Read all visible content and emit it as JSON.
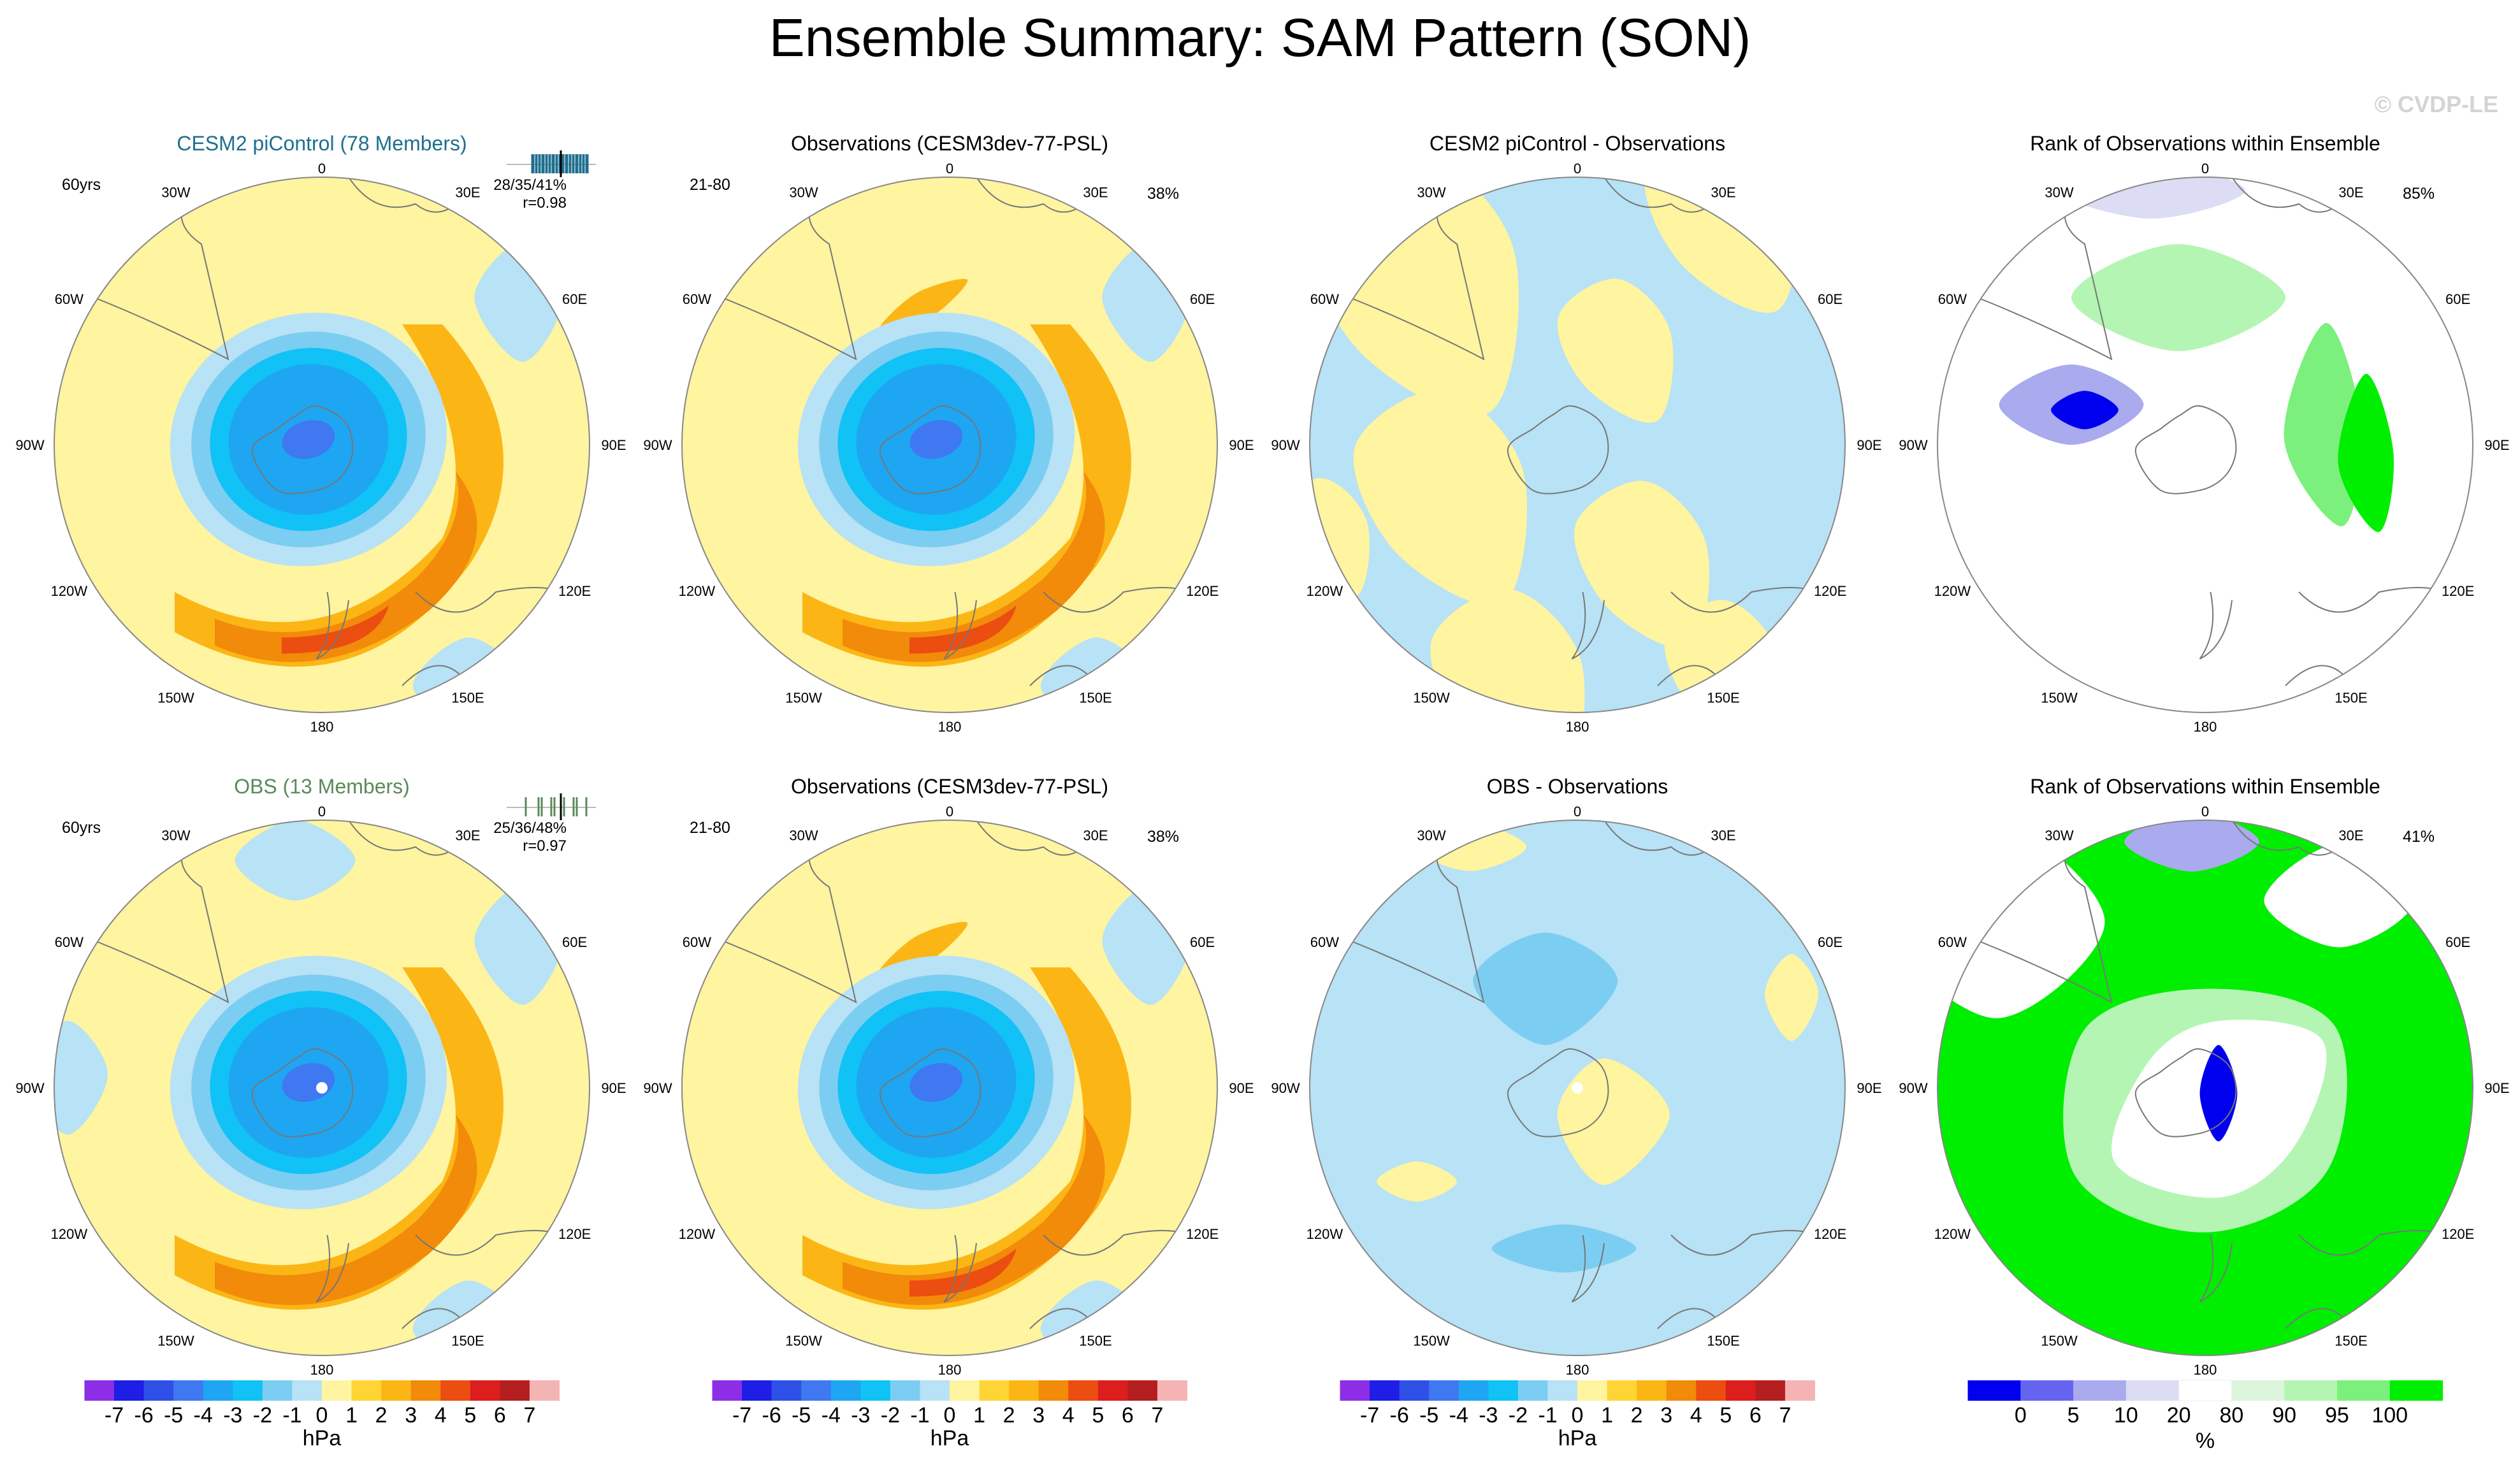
{
  "title": "Ensemble Summary: SAM Pattern (SON)",
  "watermark": "© CVDP-LE",
  "colors": {
    "land": "#ffffff",
    "outline": "#888888",
    "coast": "#777777",
    "title_cesm2": "#1f6f8f",
    "title_obs": "#5a8a5a"
  },
  "lon_labels": {
    "top": "0",
    "bottom": "180",
    "left": [
      "30W",
      "60W",
      "90W",
      "120W",
      "150W"
    ],
    "right": [
      "30E",
      "60E",
      "90E",
      "120E",
      "150E"
    ]
  },
  "panels": [
    {
      "id": "r1c1",
      "kind": "pattern",
      "title": "CESM2 piControl (78 Members)",
      "title_color": "#1f6f8f",
      "left_note": "60yrs",
      "stats": "28/35/41%",
      "corr": "r=0.98",
      "ticks": "dense",
      "max_neg": -5,
      "max_pos": 4,
      "pole_dot": false
    },
    {
      "id": "r1c2",
      "kind": "pattern",
      "title": "Observations (CESM3dev-77-PSL)",
      "left_note": "21-80",
      "right_note": "38%",
      "max_neg": -5,
      "max_pos": 4,
      "pole_dot": false
    },
    {
      "id": "r1c3",
      "kind": "diff",
      "title": "CESM2 piControl - Observations",
      "style": "mixed",
      "pole_dot": false
    },
    {
      "id": "r1c4",
      "kind": "rank",
      "title": "Rank of Observations within Ensemble",
      "right_note": "85%",
      "style": "sparse"
    },
    {
      "id": "r2c1",
      "kind": "pattern",
      "title": "OBS (13 Members)",
      "title_color": "#5a8a5a",
      "left_note": "60yrs",
      "stats": "25/36/48%",
      "corr": "r=0.97",
      "ticks": "sparse",
      "max_neg": -5,
      "max_pos": 3,
      "pole_dot": true
    },
    {
      "id": "r2c2",
      "kind": "pattern",
      "title": "Observations (CESM3dev-77-PSL)",
      "left_note": "21-80",
      "right_note": "38%",
      "max_neg": -5,
      "max_pos": 4,
      "pole_dot": false
    },
    {
      "id": "r2c3",
      "kind": "diff",
      "title": "OBS - Observations",
      "style": "mostly_neg",
      "pole_dot": true
    },
    {
      "id": "r2c4",
      "kind": "rank",
      "title": "Rank of Observations within Ensemble",
      "right_note": "41%",
      "style": "dense"
    }
  ],
  "chart_data": {
    "type": "heatmap",
    "title": "Ensemble Summary: SAM Pattern (SON)",
    "projection": "south polar stereographic",
    "variable": "PSL",
    "colorbar_hpa": {
      "label": "hPa",
      "tick_labels": [
        "-7",
        "-6",
        "-5",
        "-4",
        "-3",
        "-2",
        "-1",
        "0",
        "1",
        "2",
        "3",
        "4",
        "5",
        "6",
        "7"
      ],
      "colors": [
        "#8c2ee6",
        "#1e1ee6",
        "#2f50e6",
        "#3f78f0",
        "#1ea6f2",
        "#10c2f5",
        "#7ccdf2",
        "#b8e2f5",
        "#fff4a0",
        "#ffd535",
        "#fbb616",
        "#f28a0a",
        "#ec4d10",
        "#dc1e1e",
        "#b41e1e",
        "#f5b4b4"
      ]
    },
    "colorbar_rank": {
      "label": "%",
      "tick_labels": [
        "0",
        "5",
        "10",
        "20",
        "80",
        "90",
        "95",
        "100"
      ],
      "colors": [
        "#0000ee",
        "#6464f0",
        "#aaaaee",
        "#dcdcf5",
        "#ffffff",
        "#dcf5dc",
        "#b4f5b4",
        "#7cf07c",
        "#00ee00"
      ]
    },
    "panels": [
      {
        "title": "CESM2 piControl (78 Members)",
        "min": -5,
        "max": 4,
        "pattern_corr": 0.98,
        "variance_explained_pct": [
          28,
          35,
          41
        ],
        "years": "60yrs"
      },
      {
        "title": "Observations (CESM3dev-77-PSL)",
        "min": -5,
        "max": 4,
        "variance_explained_pct": 38,
        "years": "21-80"
      },
      {
        "title": "CESM2 piControl - Observations",
        "min": -1,
        "max": 1
      },
      {
        "title": "Rank of Observations within Ensemble",
        "percent": 85
      },
      {
        "title": "OBS (13 Members)",
        "min": -5,
        "max": 3,
        "pattern_corr": 0.97,
        "variance_explained_pct": [
          25,
          36,
          48
        ],
        "years": "60yrs"
      },
      {
        "title": "Observations (CESM3dev-77-PSL)",
        "min": -5,
        "max": 4,
        "variance_explained_pct": 38,
        "years": "21-80"
      },
      {
        "title": "OBS - Observations",
        "min": -2,
        "max": 1
      },
      {
        "title": "Rank of Observations within Ensemble",
        "percent": 41
      }
    ]
  }
}
